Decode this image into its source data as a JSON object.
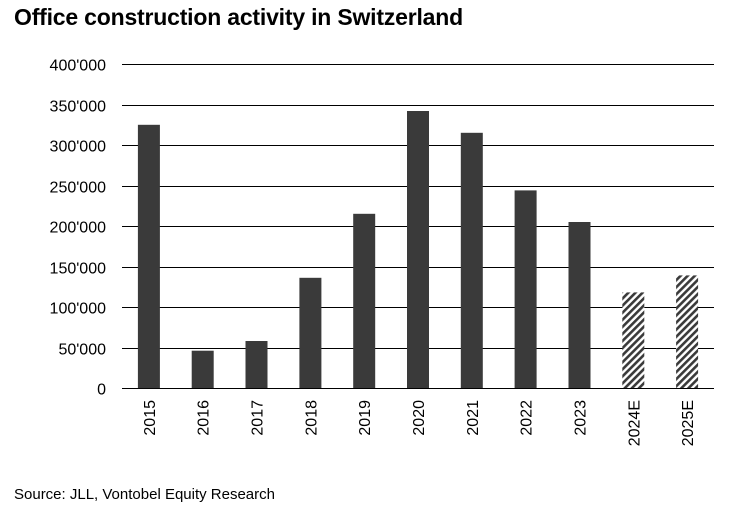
{
  "chart_data": {
    "type": "bar",
    "title": "Office construction activity in Switzerland",
    "source": "Source: JLL, Vontobel Equity Research",
    "categories": [
      "2015",
      "2016",
      "2017",
      "2018",
      "2019",
      "2020",
      "2021",
      "2022",
      "2023",
      "2024E",
      "2025E"
    ],
    "values": [
      325000,
      46000,
      58000,
      136000,
      215000,
      342000,
      315000,
      244000,
      205000,
      118000,
      139000
    ],
    "estimate": [
      false,
      false,
      false,
      false,
      false,
      false,
      false,
      false,
      false,
      true,
      true
    ],
    "ylim": [
      0,
      400000
    ],
    "yticks": [
      0,
      50000,
      100000,
      150000,
      200000,
      250000,
      300000,
      350000,
      400000
    ],
    "ytick_labels": [
      "0",
      "50'000",
      "100'000",
      "150'000",
      "200'000",
      "250'000",
      "300'000",
      "350'000",
      "400'000"
    ],
    "xlabel": "",
    "ylabel": "",
    "grid": true,
    "legend": "none",
    "colors": {
      "bar": "#3a3a3a",
      "estimate_stripe": "#3a3a3a",
      "estimate_background": "#ffffff",
      "grid": "#000000"
    }
  }
}
